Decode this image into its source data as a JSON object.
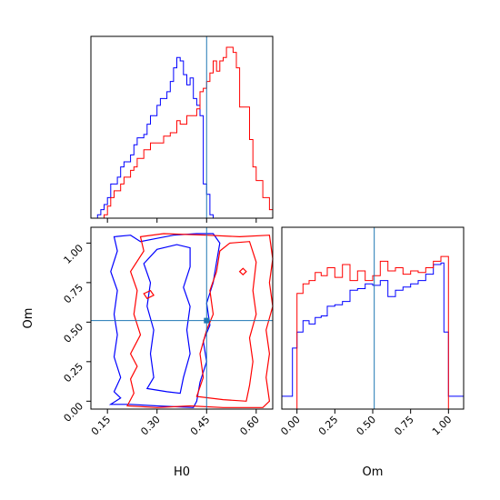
{
  "chart_data": {
    "type": "corner",
    "truth": {
      "H0": 0.45,
      "Om": 0.51
    },
    "truth_color": "#1f77b4",
    "series_colors": [
      "#0000ff",
      "#ff0000"
    ],
    "panels": [
      {
        "id": "hist-H0",
        "type": "histogram",
        "x_range": [
          0.1,
          0.65
        ],
        "x_ticks": [
          0.15,
          0.3,
          0.45,
          0.6
        ],
        "show_tick_labels": false,
        "series": [
          {
            "color": "#0000ff",
            "edges": [
              0.1,
              0.12,
              0.13,
              0.14,
              0.15,
              0.16,
              0.18,
              0.19,
              0.2,
              0.22,
              0.23,
              0.24,
              0.26,
              0.27,
              0.28,
              0.3,
              0.31,
              0.33,
              0.34,
              0.35,
              0.36,
              0.37,
              0.38,
              0.39,
              0.4,
              0.41,
              0.42,
              0.43,
              0.44,
              0.45,
              0.46,
              0.47,
              0.65
            ],
            "counts": [
              0,
              0.02,
              0.05,
              0.08,
              0.12,
              0.2,
              0.24,
              0.3,
              0.33,
              0.37,
              0.43,
              0.47,
              0.49,
              0.55,
              0.6,
              0.66,
              0.7,
              0.74,
              0.8,
              0.88,
              0.94,
              0.92,
              0.84,
              0.78,
              0.82,
              0.7,
              0.66,
              0.6,
              0.2,
              0.14,
              0.02,
              0
            ]
          },
          {
            "color": "#ff0000",
            "edges": [
              0.1,
              0.14,
              0.15,
              0.16,
              0.17,
              0.19,
              0.2,
              0.22,
              0.23,
              0.24,
              0.26,
              0.28,
              0.3,
              0.32,
              0.34,
              0.35,
              0.36,
              0.37,
              0.39,
              0.41,
              0.42,
              0.43,
              0.44,
              0.45,
              0.46,
              0.47,
              0.48,
              0.49,
              0.5,
              0.51,
              0.52,
              0.53,
              0.54,
              0.55,
              0.57,
              0.58,
              0.59,
              0.6,
              0.62,
              0.64,
              0.65
            ],
            "counts": [
              0,
              0.02,
              0.07,
              0.12,
              0.16,
              0.2,
              0.24,
              0.28,
              0.3,
              0.35,
              0.4,
              0.44,
              0.44,
              0.48,
              0.5,
              0.5,
              0.57,
              0.55,
              0.6,
              0.6,
              0.64,
              0.74,
              0.76,
              0.8,
              0.85,
              0.92,
              0.86,
              0.92,
              0.94,
              1.0,
              1.0,
              0.97,
              0.88,
              0.65,
              0.65,
              0.46,
              0.3,
              0.22,
              0.12,
              0.05
            ]
          }
        ]
      },
      {
        "id": "contour-H0-Om",
        "type": "contour",
        "x_range": [
          0.1,
          0.65
        ],
        "y_range": [
          -0.05,
          1.1
        ],
        "x_ticks": [
          0.15,
          0.3,
          0.45,
          0.6
        ],
        "x_tick_labels": [
          "0.15",
          "0.30",
          "0.45",
          "0.60"
        ],
        "y_ticks": [
          0.0,
          0.25,
          0.5,
          0.75,
          1.0
        ],
        "y_tick_labels": [
          "0.00",
          "0.25",
          "0.50",
          "0.75",
          "1.00"
        ],
        "xlabel": "H0",
        "ylabel": "Om",
        "series": [
          {
            "color": "#0000ff",
            "contours": [
              [
                [
                  0.16,
                  -0.02
                ],
                [
                  0.19,
                  0.02
                ],
                [
                  0.17,
                  0.06
                ],
                [
                  0.19,
                  0.15
                ],
                [
                  0.17,
                  0.28
                ],
                [
                  0.18,
                  0.42
                ],
                [
                  0.17,
                  0.55
                ],
                [
                  0.18,
                  0.7
                ],
                [
                  0.16,
                  0.82
                ],
                [
                  0.18,
                  0.95
                ],
                [
                  0.17,
                  1.04
                ],
                [
                  0.22,
                  1.05
                ],
                [
                  0.25,
                  1.01
                ],
                [
                  0.3,
                  1.03
                ],
                [
                  0.35,
                  1.05
                ],
                [
                  0.42,
                  1.06
                ],
                [
                  0.47,
                  1.06
                ],
                [
                  0.49,
                  1.0
                ],
                [
                  0.48,
                  0.88
                ],
                [
                  0.47,
                  0.75
                ],
                [
                  0.45,
                  0.62
                ],
                [
                  0.46,
                  0.48
                ],
                [
                  0.44,
                  0.38
                ],
                [
                  0.45,
                  0.25
                ],
                [
                  0.43,
                  0.12
                ],
                [
                  0.42,
                  0.0
                ],
                [
                  0.41,
                  -0.04
                ],
                [
                  0.3,
                  -0.03
                ],
                [
                  0.22,
                  -0.02
                ],
                [
                  0.16,
                  -0.02
                ]
              ],
              [
                [
                  0.27,
                  0.08
                ],
                [
                  0.29,
                  0.15
                ],
                [
                  0.28,
                  0.3
                ],
                [
                  0.29,
                  0.45
                ],
                [
                  0.27,
                  0.6
                ],
                [
                  0.28,
                  0.75
                ],
                [
                  0.26,
                  0.87
                ],
                [
                  0.3,
                  0.96
                ],
                [
                  0.36,
                  0.99
                ],
                [
                  0.4,
                  0.97
                ],
                [
                  0.4,
                  0.85
                ],
                [
                  0.38,
                  0.72
                ],
                [
                  0.4,
                  0.6
                ],
                [
                  0.39,
                  0.45
                ],
                [
                  0.4,
                  0.3
                ],
                [
                  0.38,
                  0.15
                ],
                [
                  0.37,
                  0.05
                ],
                [
                  0.33,
                  0.06
                ],
                [
                  0.27,
                  0.08
                ]
              ]
            ]
          },
          {
            "color": "#ff0000",
            "contours": [
              [
                [
                  0.21,
                  -0.03
                ],
                [
                  0.23,
                  0.05
                ],
                [
                  0.22,
                  0.14
                ],
                [
                  0.24,
                  0.22
                ],
                [
                  0.22,
                  0.3
                ],
                [
                  0.25,
                  0.42
                ],
                [
                  0.23,
                  0.55
                ],
                [
                  0.24,
                  0.7
                ],
                [
                  0.22,
                  0.82
                ],
                [
                  0.26,
                  0.95
                ],
                [
                  0.25,
                  1.04
                ],
                [
                  0.32,
                  1.06
                ],
                [
                  0.45,
                  1.05
                ],
                [
                  0.55,
                  1.04
                ],
                [
                  0.64,
                  1.05
                ],
                [
                  0.65,
                  0.9
                ],
                [
                  0.64,
                  0.75
                ],
                [
                  0.65,
                  0.6
                ],
                [
                  0.63,
                  0.45
                ],
                [
                  0.64,
                  0.3
                ],
                [
                  0.63,
                  0.15
                ],
                [
                  0.64,
                  0.0
                ],
                [
                  0.62,
                  -0.04
                ],
                [
                  0.5,
                  -0.04
                ],
                [
                  0.4,
                  -0.03
                ],
                [
                  0.3,
                  -0.04
                ],
                [
                  0.21,
                  -0.03
                ]
              ],
              [
                [
                  0.42,
                  0.03
                ],
                [
                  0.44,
                  0.15
                ],
                [
                  0.43,
                  0.3
                ],
                [
                  0.45,
                  0.45
                ],
                [
                  0.47,
                  0.55
                ],
                [
                  0.46,
                  0.7
                ],
                [
                  0.48,
                  0.82
                ],
                [
                  0.49,
                  0.95
                ],
                [
                  0.52,
                  1.0
                ],
                [
                  0.58,
                  1.01
                ],
                [
                  0.6,
                  0.88
                ],
                [
                  0.59,
                  0.7
                ],
                [
                  0.6,
                  0.55
                ],
                [
                  0.58,
                  0.4
                ],
                [
                  0.59,
                  0.25
                ],
                [
                  0.58,
                  0.1
                ],
                [
                  0.57,
                  0.0
                ],
                [
                  0.5,
                  0.01
                ],
                [
                  0.42,
                  0.03
                ]
              ],
              [
                [
                  0.55,
                  0.82
                ],
                [
                  0.56,
                  0.84
                ],
                [
                  0.57,
                  0.82
                ],
                [
                  0.56,
                  0.8
                ],
                [
                  0.55,
                  0.82
                ]
              ],
              [
                [
                  0.26,
                  0.68
                ],
                [
                  0.28,
                  0.7
                ],
                [
                  0.29,
                  0.67
                ],
                [
                  0.27,
                  0.65
                ],
                [
                  0.26,
                  0.68
                ]
              ]
            ]
          }
        ]
      },
      {
        "id": "hist-Om",
        "type": "histogram",
        "x_range": [
          -0.1,
          1.1
        ],
        "x_ticks": [
          0.0,
          0.25,
          0.5,
          0.75,
          1.0
        ],
        "x_tick_labels": [
          "0.00",
          "0.25",
          "0.50",
          "0.75",
          "1.00"
        ],
        "xlabel": "Om",
        "series": [
          {
            "color": "#0000ff",
            "edges": [
              -0.1,
              -0.03,
              0.0,
              0.04,
              0.08,
              0.12,
              0.16,
              0.2,
              0.25,
              0.3,
              0.35,
              0.4,
              0.45,
              0.5,
              0.55,
              0.6,
              0.65,
              0.7,
              0.75,
              0.8,
              0.85,
              0.9,
              0.95,
              0.97,
              1.0,
              1.1
            ],
            "counts": [
              0.08,
              0.38,
              0.48,
              0.55,
              0.53,
              0.57,
              0.58,
              0.64,
              0.65,
              0.67,
              0.74,
              0.75,
              0.78,
              0.77,
              0.8,
              0.7,
              0.74,
              0.76,
              0.78,
              0.8,
              0.84,
              0.9,
              0.91,
              0.48,
              0.08
            ]
          },
          {
            "color": "#ff0000",
            "edges": [
              -0.1,
              0.0,
              0.04,
              0.08,
              0.12,
              0.16,
              0.2,
              0.25,
              0.3,
              0.35,
              0.4,
              0.45,
              0.5,
              0.55,
              0.6,
              0.65,
              0.7,
              0.75,
              0.8,
              0.85,
              0.9,
              0.95,
              1.0,
              1.1
            ],
            "counts": [
              0.0,
              0.72,
              0.78,
              0.8,
              0.85,
              0.83,
              0.88,
              0.82,
              0.9,
              0.8,
              0.86,
              0.8,
              0.83,
              0.92,
              0.86,
              0.88,
              0.84,
              0.86,
              0.85,
              0.88,
              0.92,
              0.95,
              0.0
            ]
          }
        ]
      }
    ]
  }
}
